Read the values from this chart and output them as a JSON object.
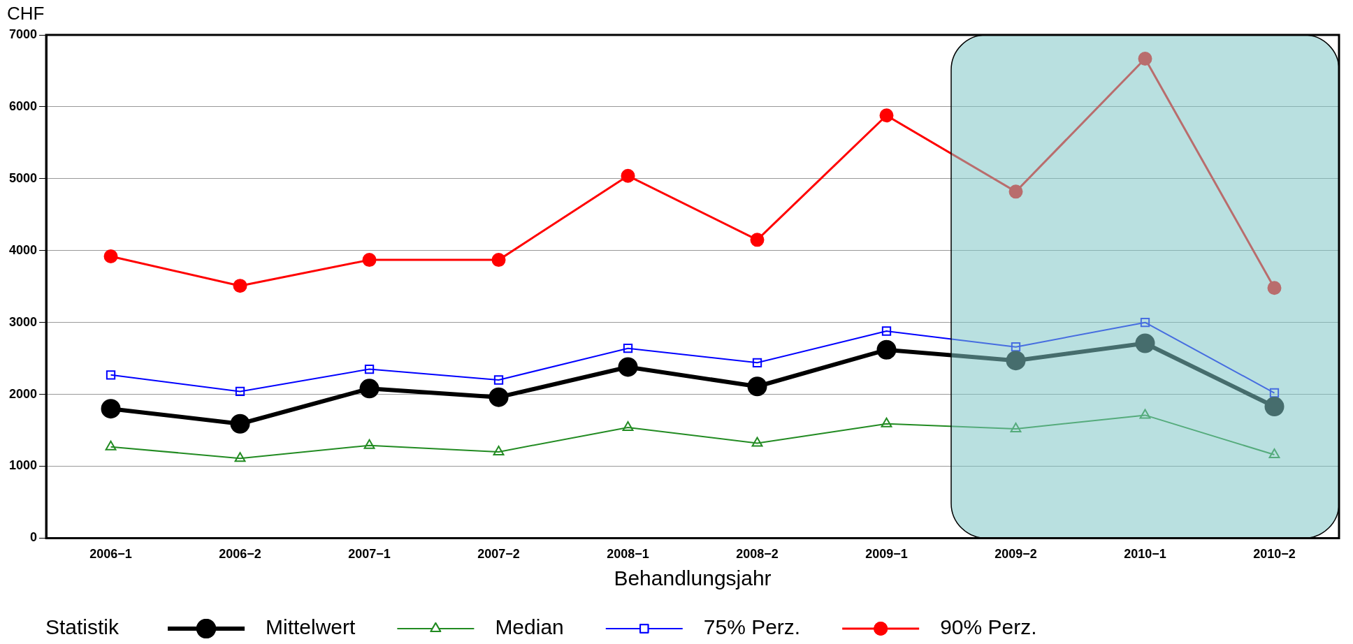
{
  "chart_data": {
    "type": "line",
    "xlabel": "Behandlungsjahr",
    "ylabel": "CHF",
    "legend_title": "Statistik",
    "legend": "bottom",
    "grid": "y",
    "categories": [
      "2006−1",
      "2006−2",
      "2007−1",
      "2007−2",
      "2008−1",
      "2008−2",
      "2009−1",
      "2009−2",
      "2010−1",
      "2010−2"
    ],
    "ylim": [
      0,
      7000
    ],
    "yticks": [
      0,
      1000,
      2000,
      3000,
      4000,
      5000,
      6000,
      7000
    ],
    "series": [
      {
        "name": "Mittelwert",
        "color": "#000000",
        "marker": "circle",
        "values": [
          1800,
          1590,
          2080,
          1960,
          2380,
          2110,
          2620,
          2470,
          2710,
          1830
        ]
      },
      {
        "name": "Median",
        "color": "#228b22",
        "marker": "triangle",
        "values": [
          1270,
          1110,
          1290,
          1200,
          1540,
          1320,
          1590,
          1520,
          1710,
          1160
        ]
      },
      {
        "name": "75% Perz.",
        "color": "#0000ff",
        "marker": "square",
        "values": [
          2270,
          2040,
          2350,
          2200,
          2640,
          2440,
          2880,
          2660,
          3000,
          2020
        ]
      },
      {
        "name": "90% Perz.",
        "color": "#ff0000",
        "marker": "circle",
        "values": [
          3920,
          3510,
          3870,
          3870,
          5040,
          4150,
          5880,
          4820,
          6670,
          3480
        ]
      }
    ],
    "bands": [
      {
        "axis": "x",
        "from": "2009−2",
        "to": "2010−2",
        "color": "#7fc6c6"
      }
    ]
  }
}
